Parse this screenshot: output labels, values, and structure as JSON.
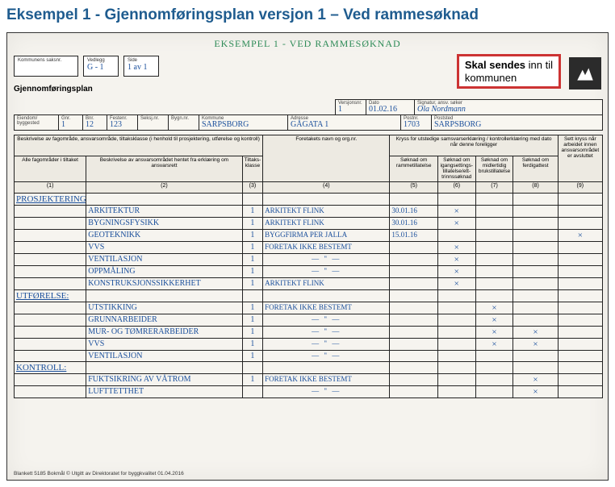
{
  "page": {
    "heading": "Eksempel 1 - Gjennomføringsplan versjon 1 – Ved rammesøknad",
    "scan_caption": "EKSEMPEL 1 - VED RAMMESØKNAD",
    "form_title": "Gjennomføringsplan",
    "callout_line1": "Skal sendes",
    "callout_line2": " inn til",
    "callout_line3": "kommunen",
    "footer": "Blankett 5185 Bokmål   © Utgitt av Direktoratet for byggkvalitet 01.04.2016"
  },
  "header_boxes": {
    "kommune_saksnr_lbl": "Kommunens saksnr.",
    "vedlegg_lbl": "Vedlegg",
    "vedlegg_val": "G - 1",
    "side_lbl": "Side",
    "side_val": "1 av 1"
  },
  "meta": {
    "row1": {
      "versjonsnr_lbl": "Versjonsnr.",
      "versjonsnr": "1",
      "dato_lbl": "Dato",
      "dato": "01.02.16",
      "sign_lbl": "Signatur, ansv. søker",
      "sign": "Ola Nordmann"
    },
    "row2": {
      "eiendom_lbl": "Eiendom/\nbyggested",
      "gnr_lbl": "Gnr.",
      "gnr": "1",
      "bnr_lbl": "Bnr.",
      "bnr": "12",
      "festenr_lbl": "Festenr.",
      "festenr": "123",
      "seksjnr_lbl": "Seksj.nr.",
      "bygnnr_lbl": "Bygn.nr.",
      "kommune_lbl": "Kommune",
      "kommune": "SARPSBORG",
      "adresse_lbl": "Adresse",
      "adresse": "GÅGATA 1",
      "postnr_lbl": "Postnr.",
      "postnr": "1703",
      "poststed_lbl": "Poststed",
      "poststed": "SARPSBORG"
    }
  },
  "columns": {
    "band1_a": "Beskrivelse av fagområde, ansvarsområde, tiltaksklasse\n(i henhold til prosjektering, utførelse og kontroll)",
    "band1_b": "Foretakets navn og org.nr.",
    "band1_c": "Kryss for utstedige samsvarserklæring / kontrollerklæring\nmed dato når denne foreligger",
    "band1_d": "Sett kryss når arbeidet innen ansvarsområdet er avsluttet",
    "c1": "Alle fagområder i tiltaket",
    "c2": "Beskrivelse av ansvarsområdet\nhentet fra erklæring om ansvarsrett",
    "c3": "Tiltaks-\nklasse",
    "c5": "Søknad om\nrammetillatelse",
    "c6": "Søknad om\nigangsettings-\ntillatelse/ett-\ntrinnssøknad",
    "c7": "Søknad om\nmidlertidig\nbrukstillatelse",
    "c8": "Søknad om\nferdigattest",
    "n1": "(1)",
    "n2": "(2)",
    "n3": "(3)",
    "n4": "(4)",
    "n5": "(5)",
    "n6": "(6)",
    "n7": "(7)",
    "n8": "(8)",
    "n9": "(9)"
  },
  "sections": [
    {
      "title": "PROSJEKTERING:",
      "rows": [
        {
          "desc": "ARKITEKTUR",
          "kl": "1",
          "firm": "ARKITEKT FLINK",
          "date": "30.01.16",
          "c6": "×"
        },
        {
          "desc": "BYGNINGSFYSIKK",
          "kl": "1",
          "firm": "ARKITEKT FLINK",
          "date": "30.01.16",
          "c6": "×"
        },
        {
          "desc": "GEOTEKNIKK",
          "kl": "1",
          "firm": "BYGGFIRMA PER JALLA",
          "date": "15.01.16",
          "c9": "×"
        },
        {
          "desc": "VVS",
          "kl": "1",
          "firm": "FORETAK IKKE BESTEMT",
          "c6": "×"
        },
        {
          "desc": "VENTILASJON",
          "kl": "1",
          "firm": "— \" —",
          "c6": "×"
        },
        {
          "desc": "OPPMÅLING",
          "kl": "1",
          "firm": "— \" —",
          "c6": "×"
        },
        {
          "desc": "KONSTRUKSJONSSIKKERHET",
          "kl": "1",
          "firm": "ARKITEKT FLINK",
          "c6": "×"
        }
      ]
    },
    {
      "title": "UTFØRELSE:",
      "rows": [
        {
          "desc": "UTSTIKKING",
          "kl": "1",
          "firm": "FORETAK IKKE BESTEMT",
          "c7": "×"
        },
        {
          "desc": "GRUNNARBEIDER",
          "kl": "1",
          "firm": "— \" —",
          "c7": "×"
        },
        {
          "desc": "MUR- OG TØMRERARBEIDER",
          "kl": "1",
          "firm": "— \" —",
          "c7": "×",
          "c8": "×"
        },
        {
          "desc": "VVS",
          "kl": "1",
          "firm": "— \" —",
          "c7": "×",
          "c8": "×"
        },
        {
          "desc": "VENTILASJON",
          "kl": "1",
          "firm": "— \" —"
        }
      ]
    },
    {
      "title": "KONTROLL:",
      "rows": [
        {
          "desc": "FUKTSIKRING AV VÅTROM",
          "kl": "1",
          "firm": "FORETAK IKKE BESTEMT",
          "c8": "×"
        },
        {
          "desc": "LUFTTETTHET",
          "kl": "",
          "firm": "— \" —",
          "c8": "×"
        }
      ]
    }
  ]
}
